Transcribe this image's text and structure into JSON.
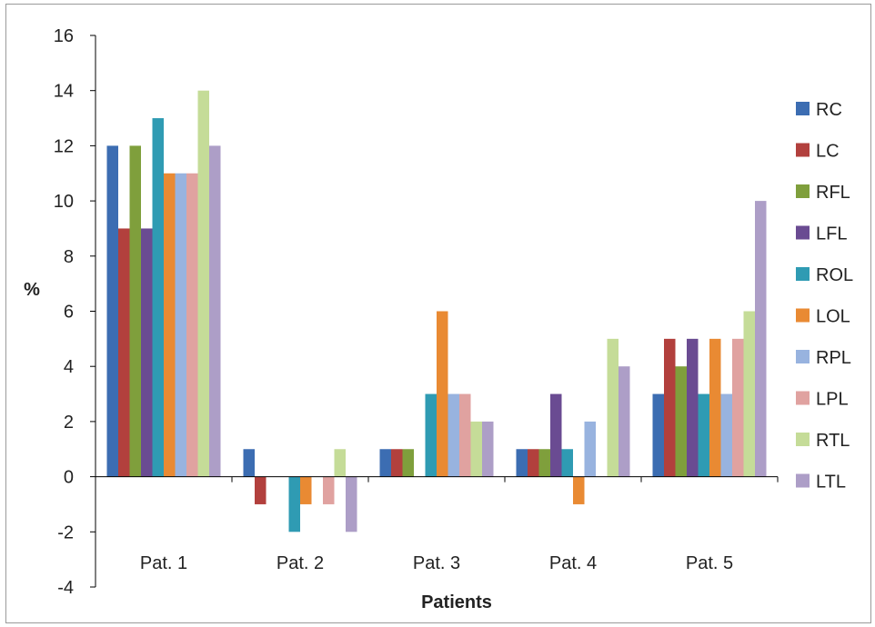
{
  "chart_data": {
    "type": "bar",
    "title": "",
    "xlabel": "Patients",
    "ylabel": "%",
    "ylim": [
      -4,
      16
    ],
    "yticks": [
      -4,
      -2,
      0,
      2,
      4,
      6,
      8,
      10,
      12,
      14,
      16
    ],
    "grid": false,
    "legend_position": "right",
    "categories": [
      "Pat. 1",
      "Pat. 2",
      "Pat. 3",
      "Pat. 4",
      "Pat. 5"
    ],
    "series": [
      {
        "name": "RC",
        "color": "#3c6db2",
        "values": [
          12,
          1,
          1,
          1,
          3
        ]
      },
      {
        "name": "LC",
        "color": "#b2403d",
        "values": [
          9,
          -1,
          1,
          1,
          5
        ]
      },
      {
        "name": "RFL",
        "color": "#7f9f3c",
        "values": [
          12,
          0,
          1,
          1,
          4
        ]
      },
      {
        "name": "LFL",
        "color": "#6a4b92",
        "values": [
          9,
          0,
          0,
          3,
          5
        ]
      },
      {
        "name": "ROL",
        "color": "#2f9bb3",
        "values": [
          13,
          -2,
          3,
          1,
          3
        ]
      },
      {
        "name": "LOL",
        "color": "#e98a33",
        "values": [
          11,
          -1,
          6,
          -1,
          5
        ]
      },
      {
        "name": "RPL",
        "color": "#98b3df",
        "values": [
          11,
          0,
          3,
          2,
          3
        ]
      },
      {
        "name": "LPL",
        "color": "#e0a2a0",
        "values": [
          11,
          -1,
          3,
          0,
          5
        ]
      },
      {
        "name": "RTL",
        "color": "#c5dc98",
        "values": [
          14,
          1,
          2,
          5,
          6
        ]
      },
      {
        "name": "LTL",
        "color": "#ad9ec7",
        "values": [
          12,
          -2,
          2,
          4,
          10
        ]
      }
    ]
  }
}
